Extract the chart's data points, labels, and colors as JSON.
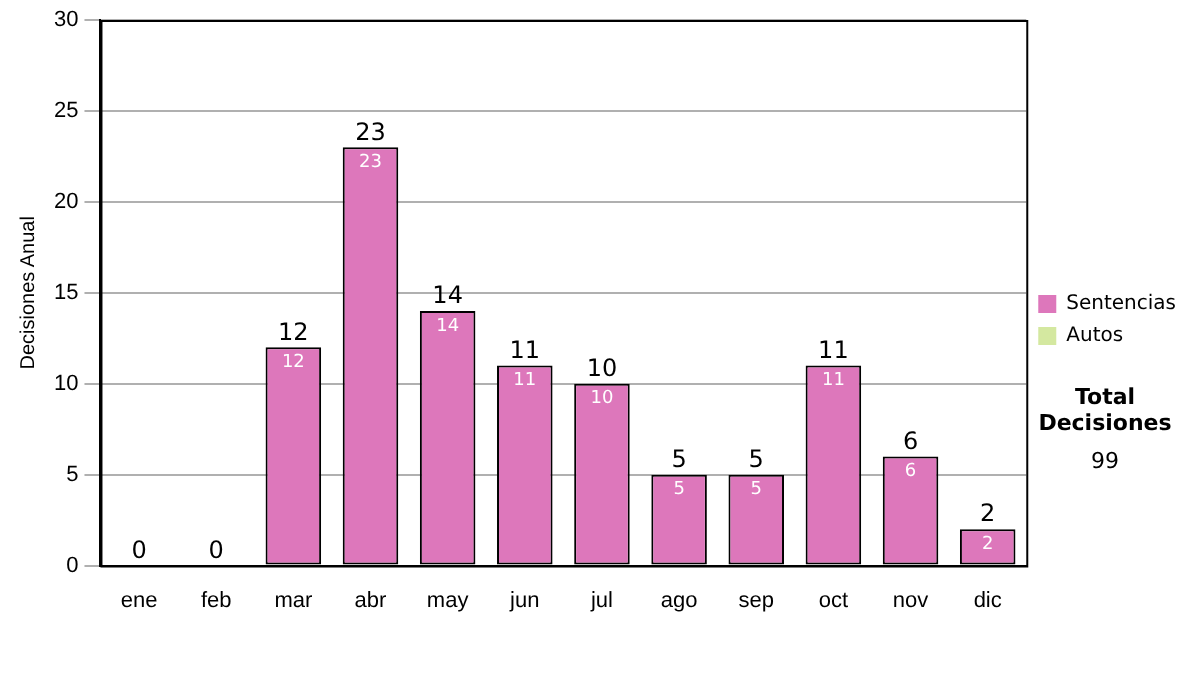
{
  "chart_data": {
    "type": "bar",
    "ylabel": "Decisiones Anual",
    "categories": [
      "ene",
      "feb",
      "mar",
      "abr",
      "may",
      "jun",
      "jul",
      "ago",
      "sep",
      "oct",
      "nov",
      "dic"
    ],
    "stacked": true,
    "series": [
      {
        "name": "Sentencias",
        "color": "#dd77bb",
        "values": [
          0,
          0,
          12,
          23,
          14,
          11,
          10,
          5,
          5,
          11,
          6,
          2
        ],
        "value_labels": [
          null,
          null,
          "12",
          "23",
          "14",
          "11",
          "10",
          "5",
          "5",
          "11",
          "6",
          "2"
        ]
      },
      {
        "name": "Autos",
        "color": "#d4e8a0",
        "values": [
          0,
          0,
          0,
          0,
          0,
          0,
          0,
          0,
          0,
          0,
          0,
          0
        ]
      }
    ],
    "totals": [
      "0",
      "0",
      "12",
      "23",
      "14",
      "11",
      "10",
      "5",
      "5",
      "11",
      "6",
      "2"
    ],
    "ylim": [
      0,
      30
    ],
    "yticks": [
      0,
      5,
      10,
      15,
      20,
      25,
      30
    ],
    "grid": "y",
    "legend": "right",
    "annotations": [
      "Total Decisiones",
      "99"
    ]
  }
}
